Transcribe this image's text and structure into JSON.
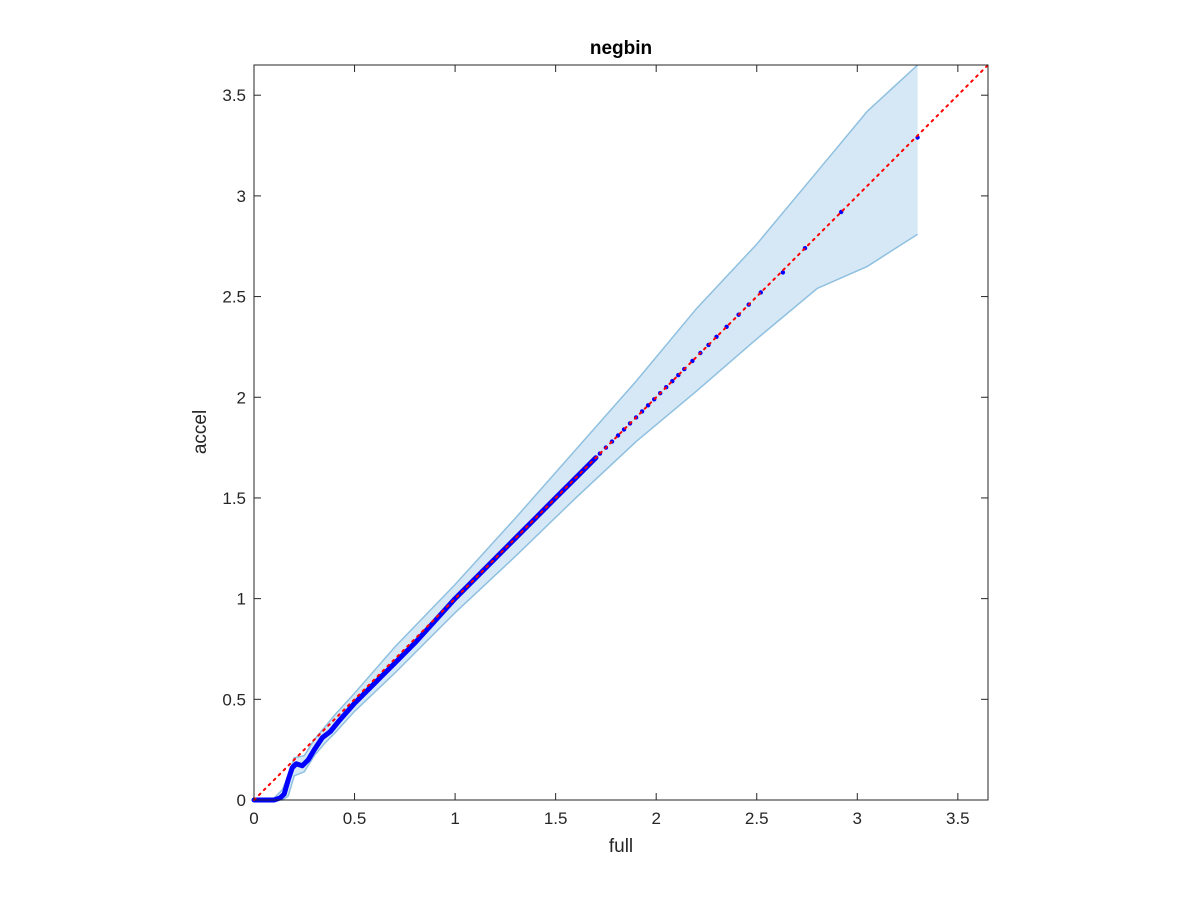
{
  "chart_data": {
    "type": "scatter",
    "title": "negbin",
    "xlabel": "full",
    "ylabel": "accel",
    "xlim": [
      0,
      3.65
    ],
    "ylim": [
      0,
      3.65
    ],
    "xticks": [
      0,
      0.5,
      1,
      1.5,
      2,
      2.5,
      3,
      3.5
    ],
    "yticks": [
      0,
      0.5,
      1,
      1.5,
      2,
      2.5,
      3,
      3.5
    ],
    "xtick_labels": [
      "0",
      "0.5",
      "1",
      "1.5",
      "2",
      "2.5",
      "3",
      "3.5"
    ],
    "ytick_labels": [
      "0",
      "0.5",
      "1",
      "1.5",
      "2",
      "2.5",
      "3",
      "3.5"
    ],
    "grid": false,
    "box": true,
    "reference_line": {
      "style": "dotted",
      "color": "#ff0000",
      "x": [
        0,
        3.65
      ],
      "y": [
        0,
        3.65
      ]
    },
    "band": {
      "fill": "#d6e8f5",
      "stroke": "#8fc0e0",
      "x": [
        0.0,
        0.1,
        0.14,
        0.17,
        0.2,
        0.25,
        0.3,
        0.35,
        0.4,
        0.5,
        0.7,
        1.0,
        1.3,
        1.6,
        1.9,
        2.2,
        2.5,
        2.8,
        3.05,
        3.3
      ],
      "upper": [
        0.0,
        0.01,
        0.05,
        0.12,
        0.21,
        0.22,
        0.3,
        0.36,
        0.42,
        0.53,
        0.76,
        1.07,
        1.4,
        1.74,
        2.08,
        2.44,
        2.76,
        3.12,
        3.42,
        3.65
      ],
      "lower": [
        0.0,
        0.0,
        0.0,
        0.02,
        0.12,
        0.14,
        0.22,
        0.28,
        0.33,
        0.44,
        0.63,
        0.93,
        1.21,
        1.5,
        1.78,
        2.03,
        2.29,
        2.54,
        2.65,
        2.81
      ]
    },
    "series": [
      {
        "color": "#0000ff",
        "marker": "dot",
        "dense_path": {
          "x": [
            0.0,
            0.1,
            0.13,
            0.15,
            0.17,
            0.19,
            0.21,
            0.24,
            0.27,
            0.3,
            0.34,
            0.38,
            0.42,
            0.5,
            0.6,
            0.7,
            0.8,
            0.9,
            1.0,
            1.1,
            1.2,
            1.3,
            1.4,
            1.5,
            1.6,
            1.7
          ],
          "y": [
            0.0,
            0.0,
            0.01,
            0.03,
            0.1,
            0.16,
            0.18,
            0.17,
            0.2,
            0.25,
            0.31,
            0.34,
            0.39,
            0.48,
            0.58,
            0.68,
            0.78,
            0.89,
            1.0,
            1.1,
            1.2,
            1.3,
            1.4,
            1.5,
            1.6,
            1.7
          ]
        },
        "points": {
          "x": [
            1.72,
            1.75,
            1.78,
            1.81,
            1.84,
            1.87,
            1.9,
            1.93,
            1.96,
            1.99,
            2.02,
            2.05,
            2.08,
            2.11,
            2.14,
            2.18,
            2.22,
            2.26,
            2.3,
            2.35,
            2.41,
            2.46,
            2.52,
            2.63,
            2.74,
            2.92,
            3.3
          ],
          "y": [
            1.72,
            1.75,
            1.78,
            1.81,
            1.84,
            1.87,
            1.9,
            1.93,
            1.96,
            1.99,
            2.02,
            2.05,
            2.08,
            2.11,
            2.14,
            2.18,
            2.22,
            2.26,
            2.3,
            2.35,
            2.41,
            2.46,
            2.52,
            2.62,
            2.74,
            2.92,
            3.29
          ]
        }
      }
    ]
  }
}
